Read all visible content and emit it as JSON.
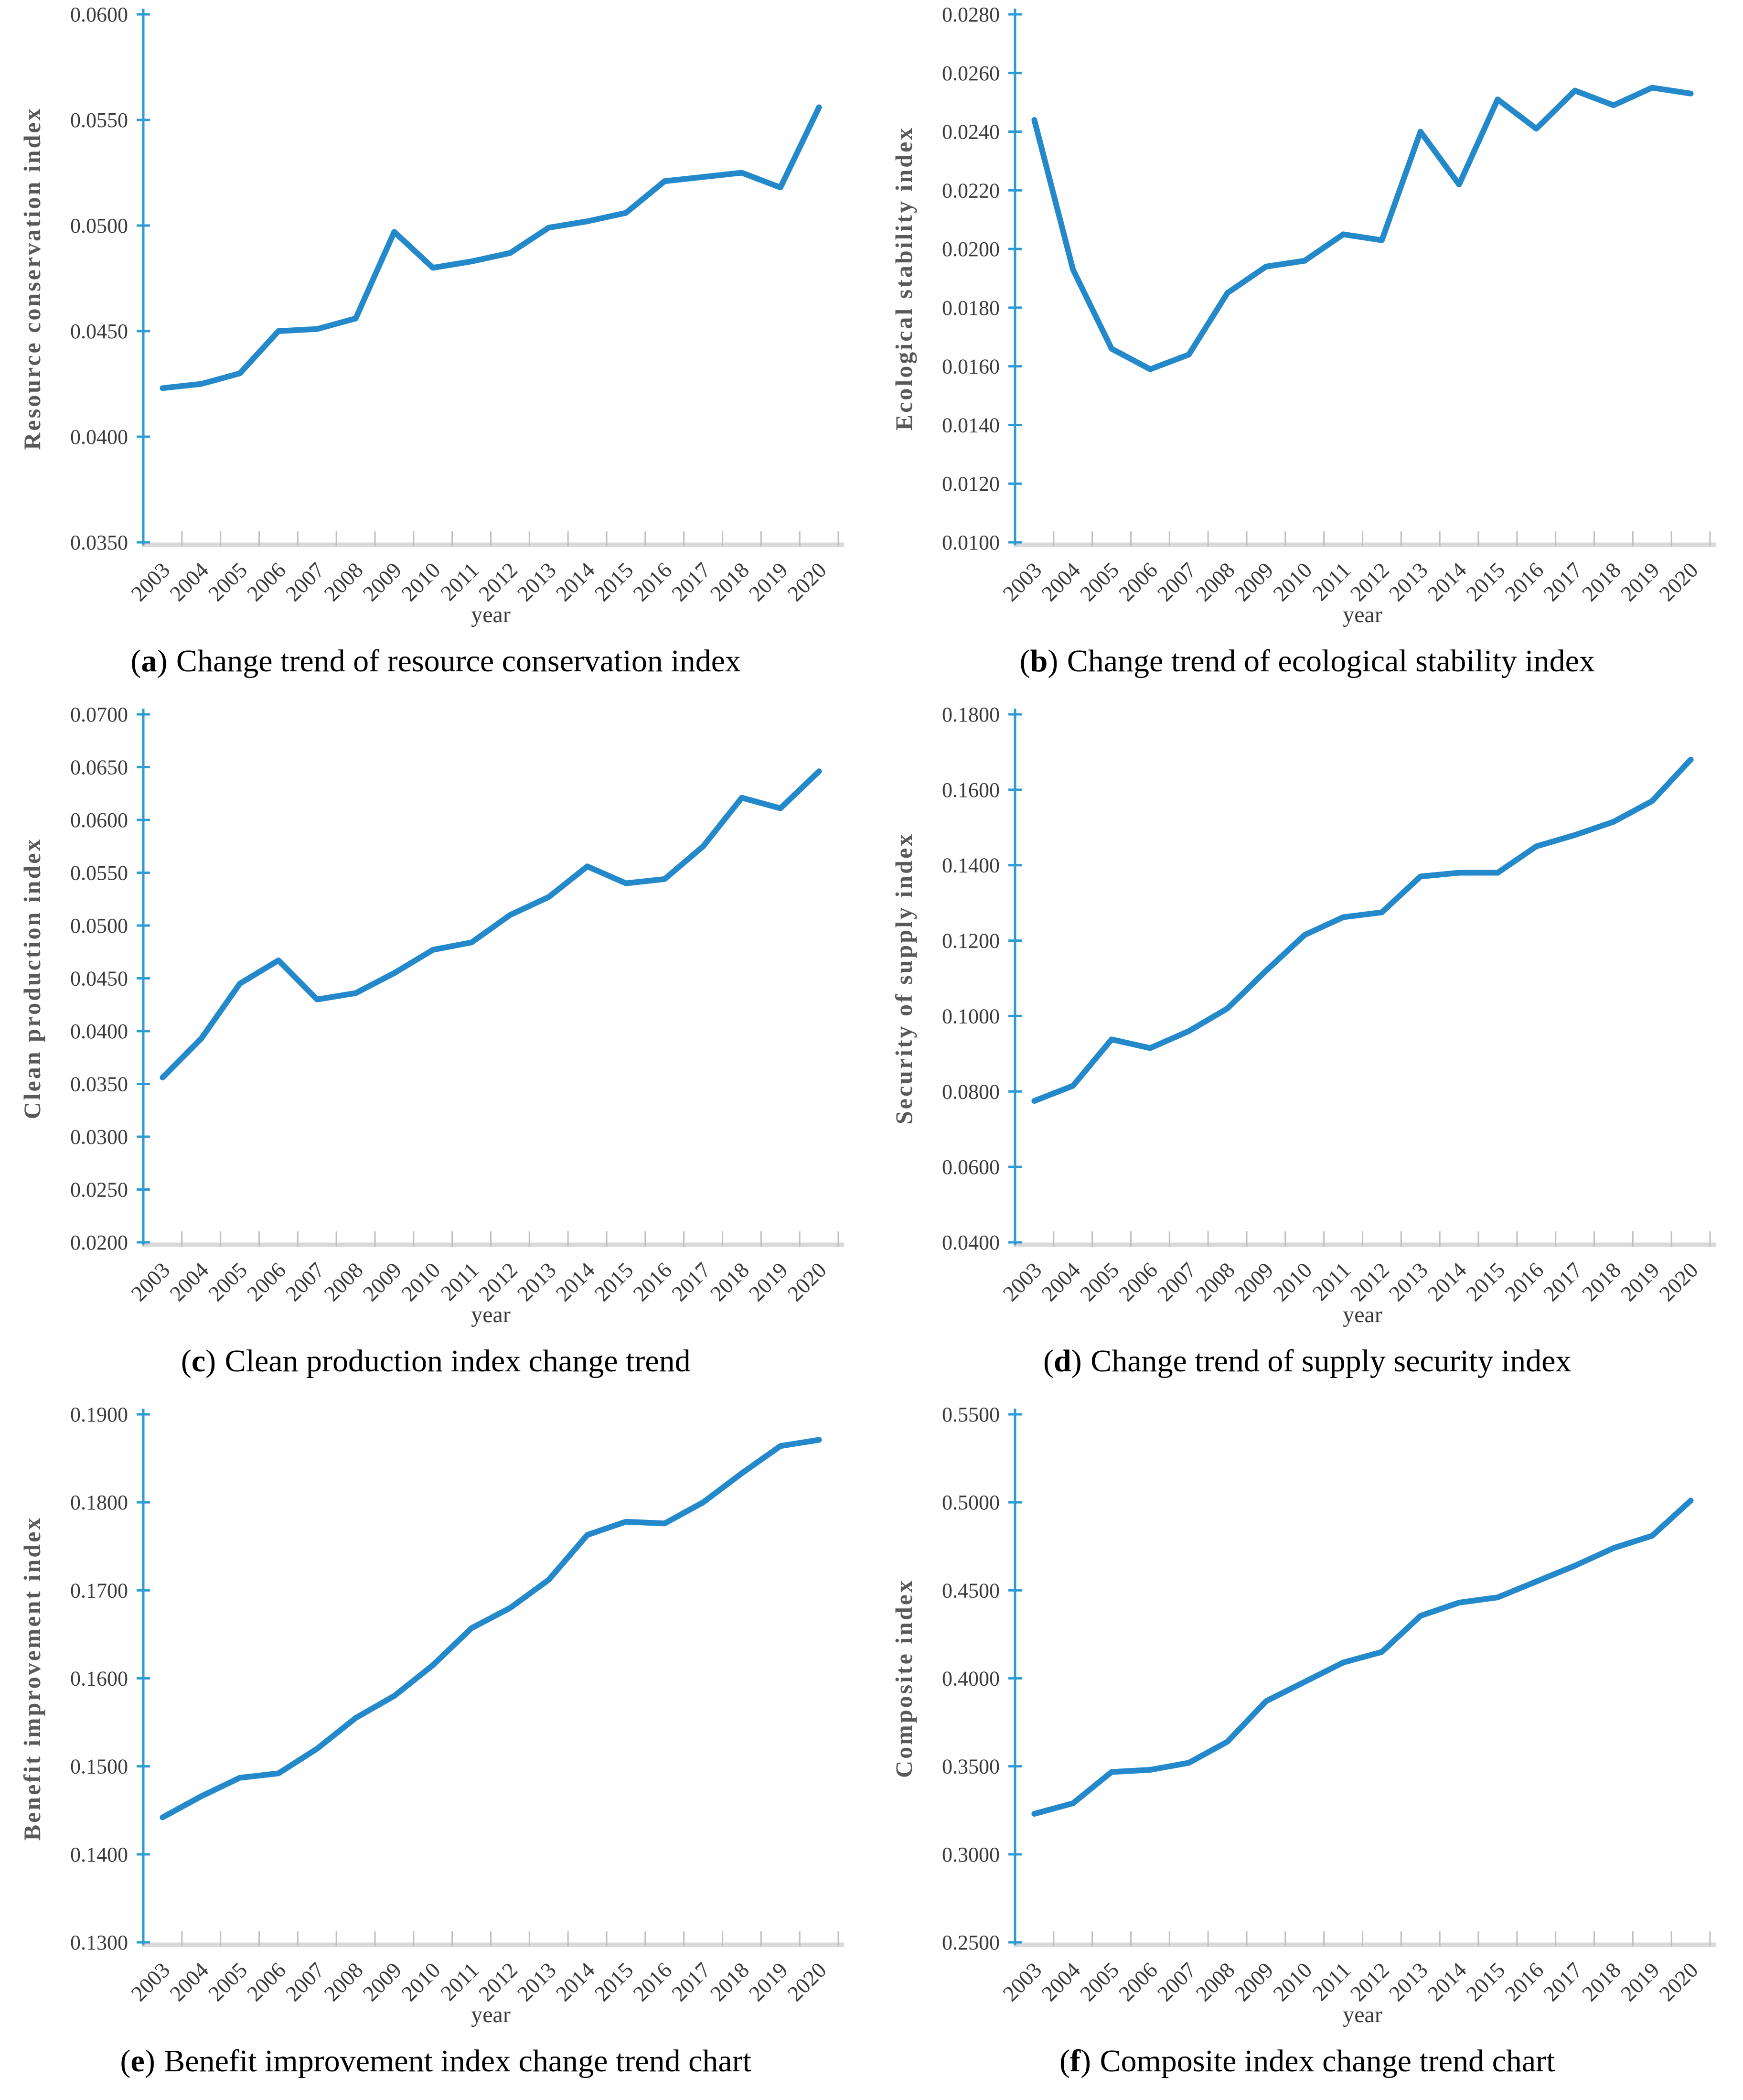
{
  "page": {
    "background": "#ffffff",
    "figure_type": "six-panel line chart figure"
  },
  "punct": {
    "open": "(",
    "close": ")"
  },
  "styles": {
    "series_line_color": "#2489cb",
    "y_axis_color": "#2e9bd5",
    "x_axis_color": "#d9d9d9",
    "x_tick_color": "#bfbfbf",
    "tick_label_color": "#3a3a3a",
    "axis_title_color": "#595959",
    "caption_color": "#000000"
  },
  "chart_data": [
    {
      "type": "line",
      "panel_letter": "a",
      "caption": "Change trend of resource conservation index",
      "title": "",
      "ylabel": "Resource conservation index",
      "xlabel": "year",
      "categories": [
        "2003",
        "2004",
        "2005",
        "2006",
        "2007",
        "2008",
        "2009",
        "2010",
        "2011",
        "2012",
        "2013",
        "2014",
        "2015",
        "2016",
        "2017",
        "2018",
        "2019",
        "2020"
      ],
      "values": [
        0.0423,
        0.0425,
        0.043,
        0.045,
        0.0451,
        0.0456,
        0.0497,
        0.048,
        0.0483,
        0.0487,
        0.0499,
        0.0502,
        0.0506,
        0.0521,
        0.0523,
        0.0525,
        0.0518,
        0.0556
      ],
      "ylim": [
        0.035,
        0.06
      ],
      "y_step": 0.005,
      "tick_decimals": 4,
      "grid": false,
      "legend": "none"
    },
    {
      "type": "line",
      "panel_letter": "b",
      "caption": "Change trend of ecological stability index",
      "title": "",
      "ylabel": "Ecological stability index",
      "xlabel": "year",
      "categories": [
        "2003",
        "2004",
        "2005",
        "2006",
        "2007",
        "2008",
        "2009",
        "2010",
        "2011",
        "2012",
        "2013",
        "2014",
        "2015",
        "2016",
        "2017",
        "2018",
        "2019",
        "2020"
      ],
      "values": [
        0.0244,
        0.0193,
        0.0166,
        0.0159,
        0.0164,
        0.0185,
        0.0194,
        0.0196,
        0.0205,
        0.0203,
        0.024,
        0.0222,
        0.0251,
        0.0241,
        0.0254,
        0.0249,
        0.0255,
        0.0253
      ],
      "ylim": [
        0.01,
        0.028
      ],
      "y_step": 0.002,
      "tick_decimals": 4,
      "grid": false,
      "legend": "none"
    },
    {
      "type": "line",
      "panel_letter": "c",
      "caption": "Clean production index change trend",
      "title": "",
      "ylabel": "Clean production index",
      "xlabel": "year",
      "categories": [
        "2003",
        "2004",
        "2005",
        "2006",
        "2007",
        "2008",
        "2009",
        "2010",
        "2011",
        "2012",
        "2013",
        "2014",
        "2015",
        "2016",
        "2017",
        "2018",
        "2019",
        "2020"
      ],
      "values": [
        0.0356,
        0.0393,
        0.0445,
        0.0467,
        0.043,
        0.0436,
        0.0455,
        0.0477,
        0.0484,
        0.051,
        0.0527,
        0.0556,
        0.054,
        0.0544,
        0.0575,
        0.0621,
        0.0611,
        0.0646
      ],
      "ylim": [
        0.02,
        0.07
      ],
      "y_step": 0.005,
      "tick_decimals": 4,
      "grid": false,
      "legend": "none"
    },
    {
      "type": "line",
      "panel_letter": "d",
      "caption": "Change trend of supply security index",
      "title": "",
      "ylabel": "Security of supply index",
      "xlabel": "year",
      "categories": [
        "2003",
        "2004",
        "2005",
        "2006",
        "2007",
        "2008",
        "2009",
        "2010",
        "2011",
        "2012",
        "2013",
        "2014",
        "2015",
        "2016",
        "2017",
        "2018",
        "2019",
        "2020"
      ],
      "values": [
        0.0775,
        0.0815,
        0.0938,
        0.0915,
        0.096,
        0.102,
        0.112,
        0.1215,
        0.1262,
        0.1275,
        0.137,
        0.138,
        0.138,
        0.145,
        0.148,
        0.1515,
        0.157,
        0.168
      ],
      "ylim": [
        0.04,
        0.18
      ],
      "y_step": 0.02,
      "tick_decimals": 4,
      "grid": false,
      "legend": "none"
    },
    {
      "type": "line",
      "panel_letter": "e",
      "caption": "Benefit improvement index change trend chart",
      "title": "",
      "ylabel": "Benefit improvement index",
      "xlabel": "year",
      "categories": [
        "2003",
        "2004",
        "2005",
        "2006",
        "2007",
        "2008",
        "2009",
        "2010",
        "2011",
        "2012",
        "2013",
        "2014",
        "2015",
        "2016",
        "2017",
        "2018",
        "2019",
        "2020"
      ],
      "values": [
        0.1442,
        0.1466,
        0.1487,
        0.1492,
        0.152,
        0.1555,
        0.158,
        0.1615,
        0.1657,
        0.168,
        0.1712,
        0.1763,
        0.1778,
        0.1776,
        0.18,
        0.1833,
        0.1864,
        0.1871
      ],
      "ylim": [
        0.13,
        0.19
      ],
      "y_step": 0.01,
      "tick_decimals": 4,
      "grid": false,
      "legend": "none"
    },
    {
      "type": "line",
      "panel_letter": "f",
      "caption": "Composite index change trend chart",
      "title": "",
      "ylabel": "Composite index",
      "xlabel": "year",
      "categories": [
        "2003",
        "2004",
        "2005",
        "2006",
        "2007",
        "2008",
        "2009",
        "2010",
        "2011",
        "2012",
        "2013",
        "2014",
        "2015",
        "2016",
        "2017",
        "2018",
        "2019",
        "2020"
      ],
      "values": [
        0.323,
        0.329,
        0.3468,
        0.348,
        0.352,
        0.364,
        0.387,
        0.398,
        0.409,
        0.415,
        0.4355,
        0.443,
        0.446,
        0.455,
        0.464,
        0.474,
        0.481,
        0.501
      ],
      "ylim": [
        0.25,
        0.55
      ],
      "y_step": 0.05,
      "tick_decimals": 4,
      "grid": false,
      "legend": "none"
    }
  ]
}
